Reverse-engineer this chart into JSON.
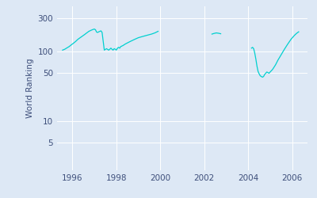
{
  "ylabel": "World Ranking",
  "line_color": "#00d0cf",
  "background_color": "#dde8f5",
  "yticks": [
    5,
    10,
    50,
    100,
    300
  ],
  "xlim": [
    1995.3,
    2006.7
  ],
  "ylim_log": [
    2.0,
    450
  ],
  "xticks": [
    1996,
    1998,
    2000,
    2002,
    2004,
    2006
  ],
  "seg1_x": [
    1995.55,
    1995.65,
    1995.75,
    1995.85,
    1995.95,
    1996.05,
    1996.15,
    1996.25,
    1996.4,
    1996.55,
    1996.65,
    1996.75,
    1996.85,
    1996.95,
    1997.0,
    1997.05,
    1997.1,
    1997.15,
    1997.2,
    1997.25,
    1997.3,
    1997.35,
    1997.45,
    1997.55,
    1997.65,
    1997.7,
    1997.75,
    1997.8,
    1997.85,
    1997.9,
    1997.95,
    1998.0,
    1998.05,
    1998.1,
    1998.15,
    1998.2,
    1998.3,
    1998.4,
    1998.5,
    1998.6,
    1998.7,
    1998.8,
    1998.9,
    1999.0,
    1999.15,
    1999.3,
    1999.45,
    1999.6,
    1999.75,
    1999.9
  ],
  "seg1_y": [
    105,
    108,
    113,
    118,
    125,
    132,
    140,
    150,
    162,
    175,
    185,
    195,
    202,
    208,
    210,
    205,
    190,
    188,
    192,
    195,
    198,
    188,
    105,
    110,
    105,
    108,
    112,
    108,
    105,
    110,
    108,
    105,
    112,
    115,
    112,
    118,
    122,
    128,
    133,
    138,
    143,
    148,
    153,
    158,
    163,
    168,
    173,
    178,
    185,
    195
  ],
  "seg2_x": [
    2002.35,
    2002.45,
    2002.55,
    2002.65,
    2002.75
  ],
  "seg2_y": [
    178,
    182,
    185,
    183,
    180
  ],
  "seg3_x": [
    2004.15,
    2004.2,
    2004.25,
    2004.3,
    2004.35,
    2004.4,
    2004.45,
    2004.5,
    2004.55,
    2004.6,
    2004.65,
    2004.7,
    2004.75,
    2004.8,
    2004.85,
    2004.9,
    2004.95,
    2005.0,
    2005.05,
    2005.1,
    2005.15,
    2005.25,
    2005.35,
    2005.5,
    2005.65,
    2005.8,
    2005.95,
    2006.1,
    2006.2,
    2006.3
  ],
  "seg3_y": [
    112,
    115,
    110,
    95,
    78,
    62,
    52,
    48,
    45,
    44,
    43,
    44,
    47,
    49,
    51,
    50,
    49,
    51,
    53,
    55,
    58,
    65,
    75,
    90,
    108,
    128,
    150,
    170,
    182,
    192
  ]
}
